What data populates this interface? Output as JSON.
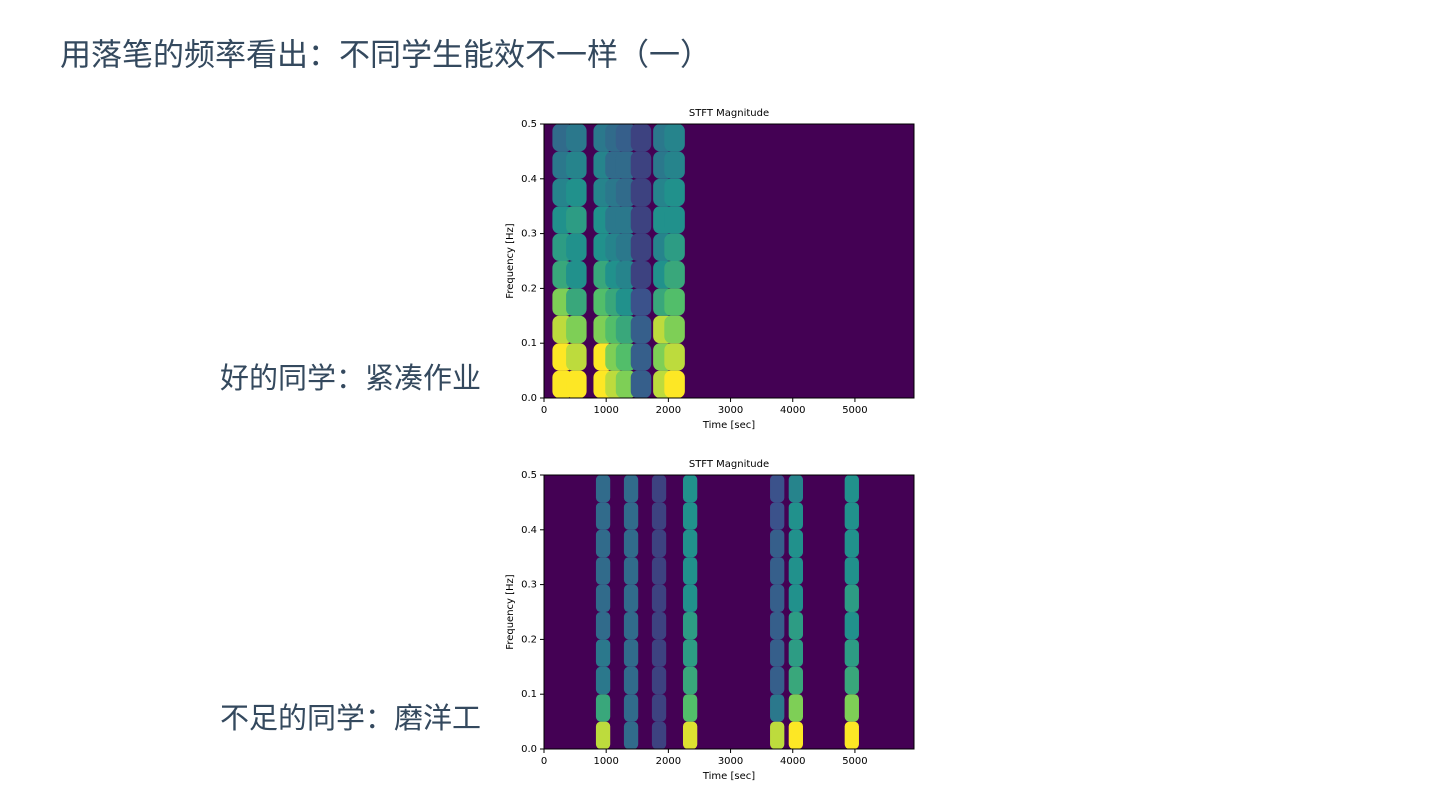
{
  "title": "用落笔的频率看出：不同学生能效不一样（一）",
  "labels": [
    "好的同学：紧凑作业",
    "不足的同学：磨洋工"
  ],
  "chart_data": [
    {
      "type": "heatmap",
      "title": "STFT Magnitude",
      "x_label": "Time [sec]",
      "y_label": "Frequency [Hz]",
      "x": [
        300,
        520,
        960,
        1150,
        1320,
        1560,
        1920,
        2100
      ],
      "y": [
        0.025,
        0.075,
        0.125,
        0.175,
        0.225,
        0.275,
        0.325,
        0.375,
        0.425,
        0.475
      ],
      "values": [
        [
          1,
          1,
          1,
          0.9,
          0.8,
          0.3,
          0.9,
          1
        ],
        [
          1,
          0.9,
          1,
          0.8,
          0.7,
          0.3,
          0.8,
          0.9
        ],
        [
          0.9,
          0.8,
          0.8,
          0.7,
          0.6,
          0.3,
          0.9,
          0.8
        ],
        [
          0.8,
          0.6,
          0.7,
          0.6,
          0.5,
          0.25,
          0.6,
          0.7
        ],
        [
          0.6,
          0.5,
          0.6,
          0.5,
          0.45,
          0.2,
          0.5,
          0.6
        ],
        [
          0.55,
          0.5,
          0.5,
          0.45,
          0.4,
          0.2,
          0.45,
          0.55
        ],
        [
          0.5,
          0.55,
          0.5,
          0.4,
          0.4,
          0.2,
          0.5,
          0.5
        ],
        [
          0.45,
          0.5,
          0.45,
          0.4,
          0.35,
          0.2,
          0.45,
          0.5
        ],
        [
          0.4,
          0.45,
          0.45,
          0.35,
          0.35,
          0.2,
          0.4,
          0.45
        ],
        [
          0.35,
          0.4,
          0.4,
          0.35,
          0.3,
          0.2,
          0.4,
          0.45
        ]
      ],
      "xlim": [
        0,
        5950
      ],
      "ylim": [
        0,
        0.5
      ],
      "xticks": [
        0,
        1000,
        2000,
        3000,
        4000,
        5000
      ],
      "yticks": [
        {
          "value": 0,
          "label": "0.0"
        },
        0.1,
        0.2,
        0.3,
        0.4,
        0.5
      ]
    },
    {
      "type": "heatmap",
      "title": "STFT Magnitude",
      "x_label": "Time [sec]",
      "y_label": "Frequency [Hz]",
      "x": [
        950,
        1400,
        1850,
        2350,
        3750,
        4050,
        4950
      ],
      "y": [
        0.025,
        0.075,
        0.125,
        0.175,
        0.225,
        0.275,
        0.325,
        0.375,
        0.425,
        0.475
      ],
      "values": [
        [
          0.9,
          0.35,
          0.2,
          0.95,
          0.9,
          1,
          1
        ],
        [
          0.6,
          0.35,
          0.2,
          0.7,
          0.4,
          0.8,
          0.8
        ],
        [
          0.4,
          0.35,
          0.2,
          0.6,
          0.3,
          0.6,
          0.6
        ],
        [
          0.4,
          0.35,
          0.2,
          0.55,
          0.3,
          0.55,
          0.55
        ],
        [
          0.35,
          0.35,
          0.2,
          0.55,
          0.3,
          0.55,
          0.5
        ],
        [
          0.35,
          0.35,
          0.2,
          0.5,
          0.3,
          0.5,
          0.55
        ],
        [
          0.35,
          0.35,
          0.2,
          0.5,
          0.3,
          0.5,
          0.5
        ],
        [
          0.35,
          0.35,
          0.2,
          0.5,
          0.3,
          0.5,
          0.5
        ],
        [
          0.35,
          0.35,
          0.2,
          0.5,
          0.25,
          0.5,
          0.5
        ],
        [
          0.35,
          0.35,
          0.2,
          0.5,
          0.25,
          0.45,
          0.5
        ]
      ],
      "xlim": [
        0,
        5950
      ],
      "ylim": [
        0,
        0.5
      ],
      "xticks": [
        0,
        1000,
        2000,
        3000,
        4000,
        5000
      ],
      "yticks": [
        {
          "value": 0,
          "label": "0.0"
        },
        0.1,
        0.2,
        0.3,
        0.4,
        0.5
      ]
    }
  ]
}
